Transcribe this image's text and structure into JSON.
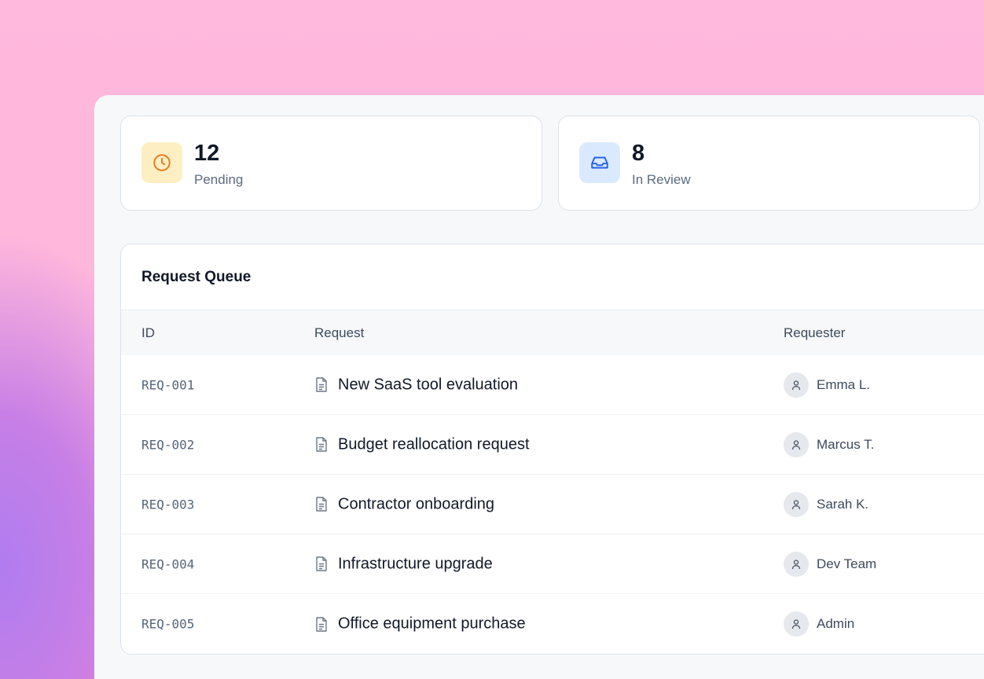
{
  "stats": [
    {
      "value": "12",
      "label": "Pending",
      "icon": "clock-icon",
      "icon_bg": "#feefc3",
      "icon_color": "#ea7a1f"
    },
    {
      "value": "8",
      "label": "In Review",
      "icon": "inbox-icon",
      "icon_bg": "#dbe9fe",
      "icon_color": "#2563eb"
    }
  ],
  "table": {
    "title": "Request Queue",
    "columns": [
      "ID",
      "Request",
      "Requester"
    ],
    "rows": [
      {
        "id": "REQ-001",
        "request": "New SaaS tool evaluation",
        "requester": "Emma L."
      },
      {
        "id": "REQ-002",
        "request": "Budget reallocation request",
        "requester": "Marcus T."
      },
      {
        "id": "REQ-003",
        "request": "Contractor onboarding",
        "requester": "Sarah K."
      },
      {
        "id": "REQ-004",
        "request": "Infrastructure upgrade",
        "requester": "Dev Team"
      },
      {
        "id": "REQ-005",
        "request": "Office equipment purchase",
        "requester": "Admin"
      }
    ]
  }
}
